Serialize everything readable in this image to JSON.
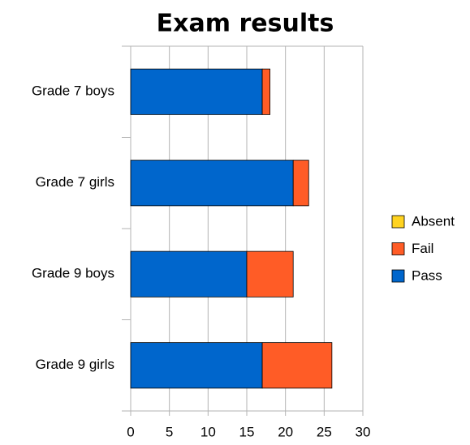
{
  "chart_data": {
    "type": "stacked-barh",
    "title": "Exam results",
    "categories": [
      "Grade 7 boys",
      "Grade 7 girls",
      "Grade 9 boys",
      "Grade 9 girls"
    ],
    "series": [
      {
        "name": "Pass",
        "color": "#0066cc",
        "values": [
          17,
          21,
          15,
          17
        ]
      },
      {
        "name": "Fail",
        "color": "#ff5c26",
        "values": [
          1,
          2,
          6,
          9
        ]
      },
      {
        "name": "Absent",
        "color": "#ffd320",
        "values": [
          0,
          0,
          0,
          0
        ]
      }
    ],
    "xlim": [
      0,
      30
    ],
    "xticks": [
      0,
      5,
      10,
      15,
      20,
      25,
      30
    ],
    "grid": true,
    "legend": "right"
  }
}
